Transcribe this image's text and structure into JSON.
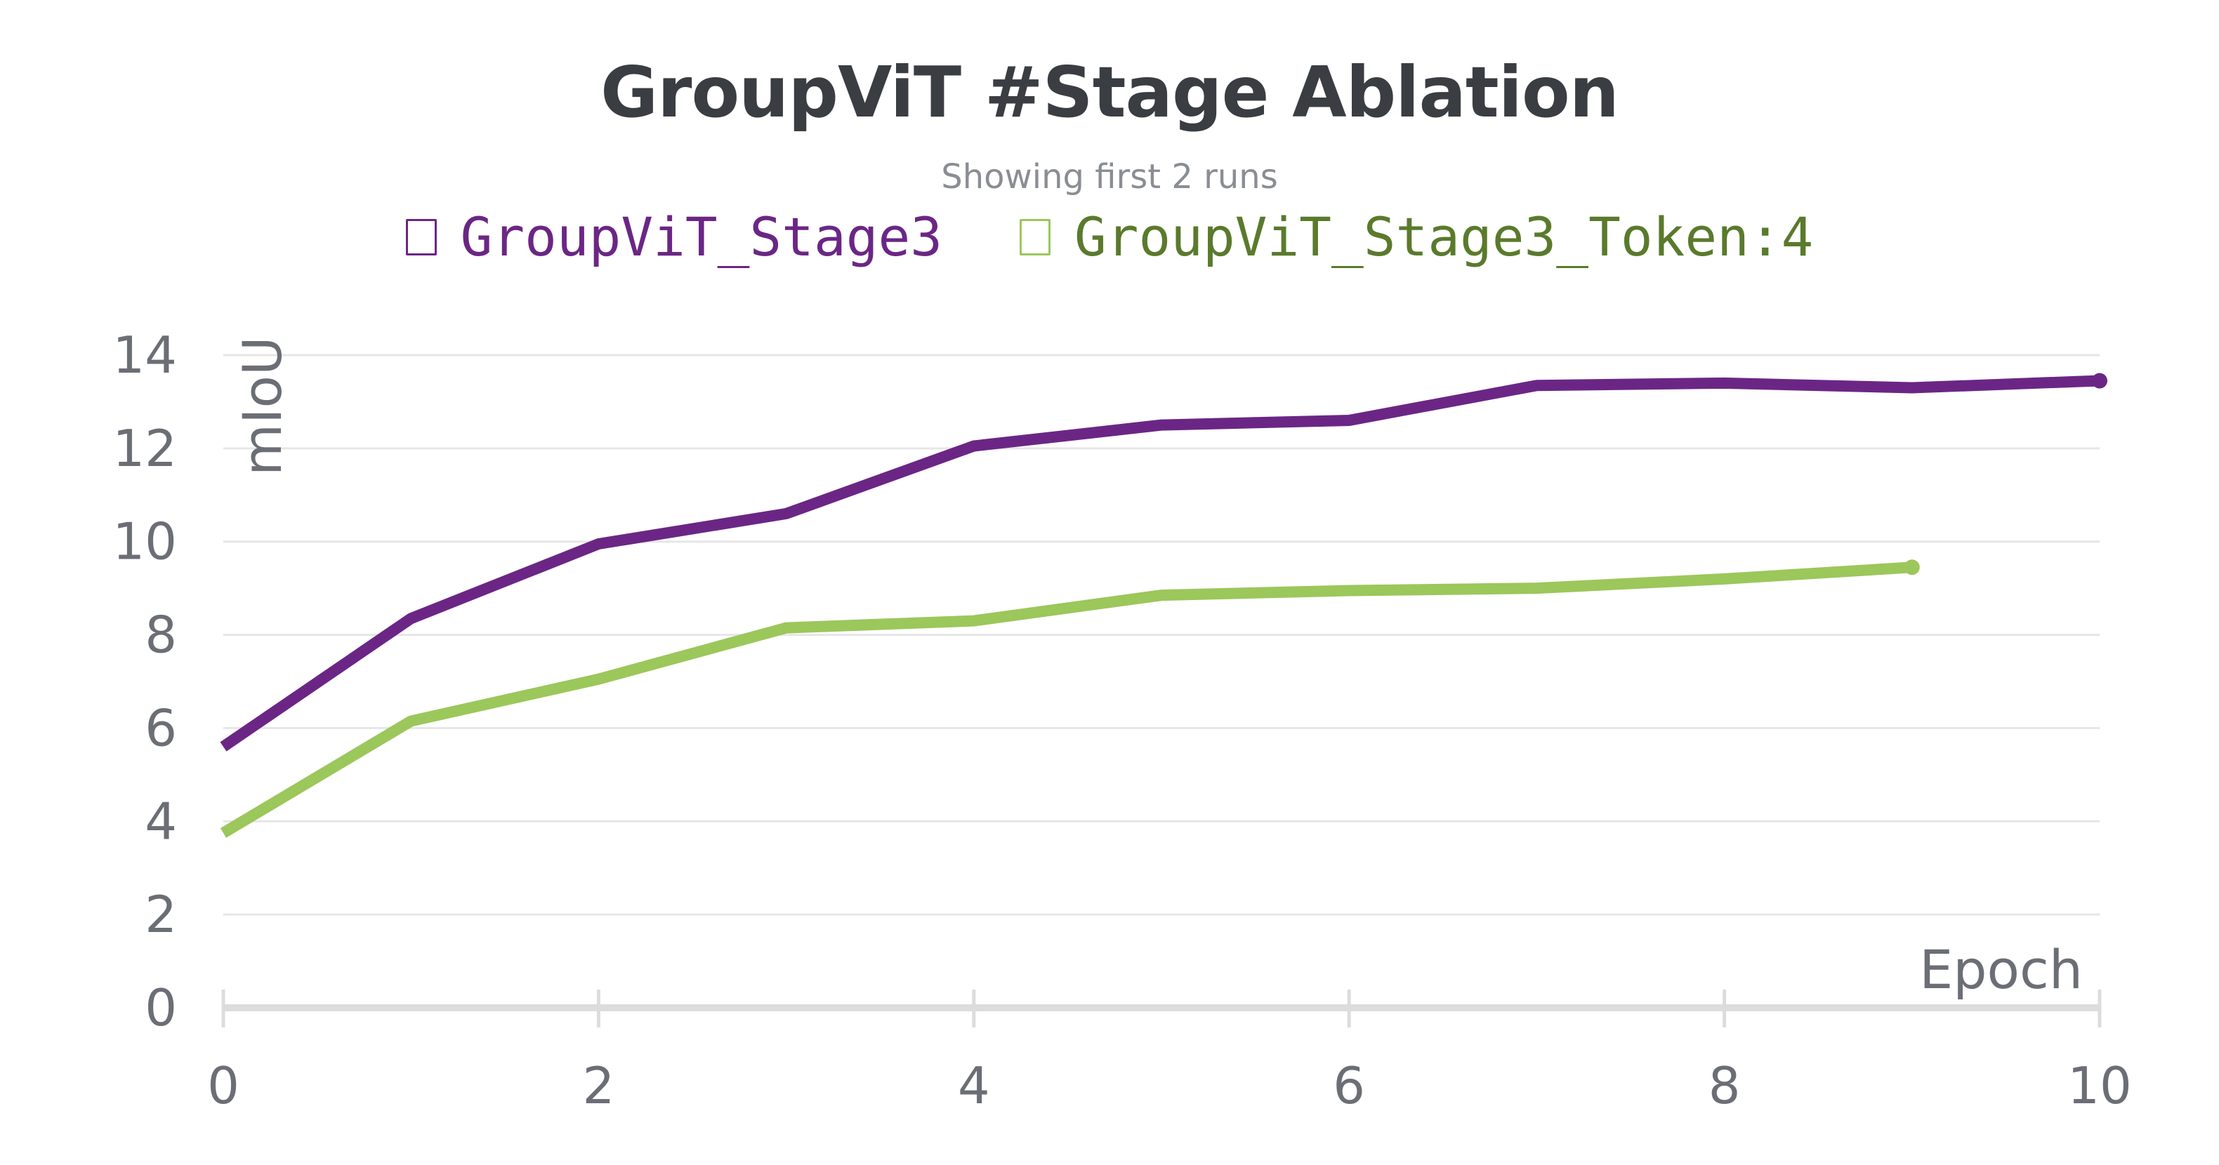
{
  "chart_data": {
    "type": "line",
    "title": "GroupViT #Stage Ablation",
    "subtitle": "Showing first 2 runs",
    "xlabel": "Epoch",
    "ylabel": "mIoU",
    "xlim": [
      0,
      10
    ],
    "ylim": [
      0,
      14
    ],
    "x_ticks": [
      "0",
      "2",
      "4",
      "6",
      "8",
      "10"
    ],
    "y_ticks": [
      "0",
      "2",
      "4",
      "6",
      "8",
      "10",
      "12",
      "14"
    ],
    "grid": true,
    "legend_position": "top-center",
    "series": [
      {
        "name": "GroupViT_Stage3",
        "color": "#6b2685",
        "x": [
          0,
          1,
          2,
          3,
          4,
          5,
          6,
          7,
          8,
          9,
          10
        ],
        "y": [
          5.6,
          8.35,
          9.95,
          10.6,
          12.05,
          12.5,
          12.6,
          13.35,
          13.4,
          13.3,
          13.45
        ]
      },
      {
        "name": "GroupViT_Stage3_Token:4",
        "color": "#9bc75b",
        "legend_text_color": "#5a7a2c",
        "x": [
          0,
          1,
          2,
          3,
          4,
          5,
          6,
          7,
          8,
          9
        ],
        "y": [
          3.75,
          6.15,
          7.05,
          8.15,
          8.3,
          8.85,
          8.95,
          9.0,
          9.2,
          9.45
        ]
      }
    ]
  }
}
